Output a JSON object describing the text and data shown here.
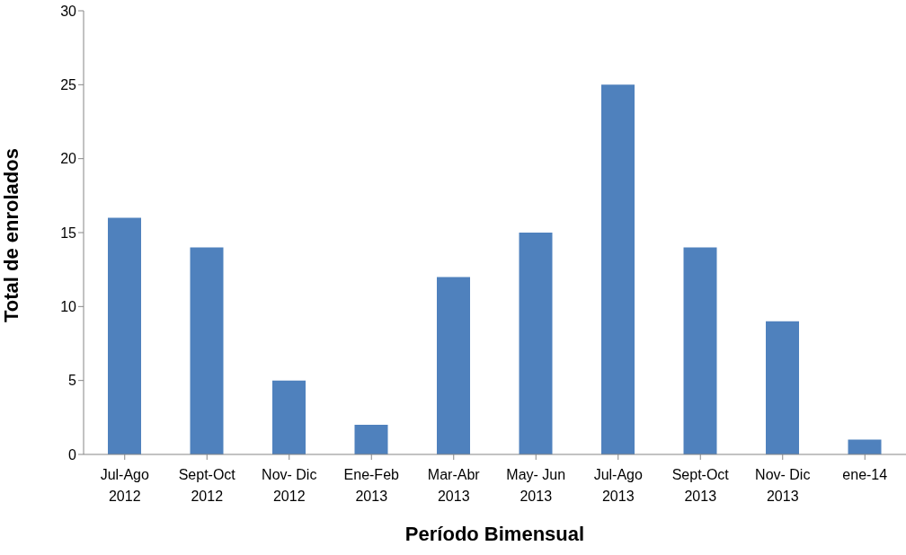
{
  "chart_data": {
    "type": "bar",
    "xlabel": "Período Bimensual",
    "ylabel": "Total de enrolados",
    "categories": [
      "Jul-Ago\n2012",
      "Sept-Oct\n2012",
      "Nov- Dic\n2012",
      "Ene-Feb\n2013",
      "Mar-Abr\n2013",
      "May- Jun\n2013",
      "Jul-Ago\n2013",
      "Sept-Oct\n2013",
      "Nov- Dic\n2013",
      "ene-14"
    ],
    "values": [
      16,
      14,
      5,
      2,
      12,
      15,
      25,
      14,
      9,
      1
    ],
    "color": "#4f81bd",
    "ylim": [
      0,
      30
    ],
    "yticks": [
      0,
      5,
      10,
      15,
      20,
      25,
      30
    ],
    "grid": false,
    "legend": false
  }
}
